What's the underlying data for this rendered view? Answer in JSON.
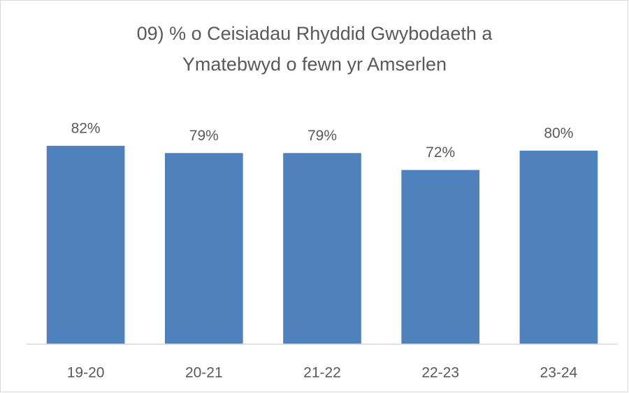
{
  "chart_data": {
    "type": "bar",
    "title": [
      "09) % o Ceisiadau Rhyddid Gwybodaeth a",
      "Ymatebwyd o fewn yr Amserlen"
    ],
    "categories": [
      "19-20",
      "20-21",
      "21-22",
      "22-23",
      "23-24"
    ],
    "values": [
      82,
      79,
      79,
      72,
      80
    ],
    "value_labels": [
      "82%",
      "79%",
      "79%",
      "72%",
      "80%"
    ],
    "color": "#4f81bd"
  }
}
